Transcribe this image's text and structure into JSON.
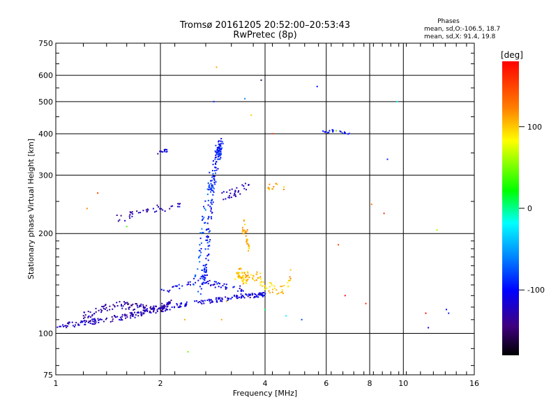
{
  "chart_data": {
    "type": "scatter",
    "title": "Tromsø 20161205 20:52:00–20:53:43",
    "subtitle": "RwPretec (8p)",
    "xlabel": "Frequency [MHz]",
    "ylabel": "Stationary phase Virtual Height [km]",
    "xscale": "log",
    "yscale": "log",
    "xlim": [
      1,
      16
    ],
    "ylim": [
      75,
      750
    ],
    "x_ticks": [
      1,
      2,
      4,
      6,
      8,
      10,
      16
    ],
    "x_tick_labels": [
      "1",
      "2",
      "4",
      "6",
      "8",
      "10",
      "16"
    ],
    "y_ticks": [
      75,
      100,
      200,
      300,
      400,
      500,
      600,
      750
    ],
    "y_tick_labels": [
      "75",
      "100",
      "200",
      "300",
      "400",
      "500",
      "600",
      "750"
    ],
    "grid": true,
    "phases_legend": {
      "title": "Phases",
      "line1": "mean, sd,O:-106.5, 18.7",
      "line2": "mean, sd,X:  91.4, 19.8"
    },
    "colorbar": {
      "label": "[deg]",
      "range": [
        -180,
        180
      ],
      "tick_values": [
        100,
        0,
        -100
      ],
      "tick_labels": [
        "100",
        "0",
        "-100"
      ]
    },
    "traces": [
      {
        "f": [
          1.0,
          1.1,
          1.25,
          1.4,
          1.55,
          1.7,
          1.85,
          2.0,
          2.15
        ],
        "h": [
          105,
          106,
          108,
          110,
          112,
          114,
          117,
          120,
          124
        ],
        "phase": -125,
        "spread": 0.02,
        "n": 160
      },
      {
        "f": [
          1.2,
          1.35,
          1.5,
          1.65,
          1.8,
          1.95,
          2.1
        ],
        "h": [
          113,
          118,
          122,
          121,
          119,
          118,
          120
        ],
        "phase": -130,
        "spread": 0.025,
        "n": 110
      },
      {
        "f": [
          2.0,
          2.3,
          2.6,
          2.9,
          3.2,
          3.5,
          3.8,
          4.0
        ],
        "h": [
          118,
          122,
          124,
          126,
          128,
          130,
          130,
          131
        ],
        "phase": -110,
        "spread": 0.015,
        "n": 130
      },
      {
        "f": [
          2.0,
          2.3,
          2.6,
          2.9,
          3.2,
          3.5
        ],
        "h": [
          135,
          138,
          145,
          140,
          137,
          136
        ],
        "phase": -108,
        "spread": 0.02,
        "n": 60
      },
      {
        "f": [
          2.6,
          2.7,
          2.75,
          2.8,
          2.85,
          2.9,
          2.95,
          3.0
        ],
        "h": [
          130,
          160,
          200,
          250,
          300,
          340,
          360,
          370
        ],
        "phase": -95,
        "spread": 0.05,
        "n": 190
      },
      {
        "f": [
          2.5,
          2.6,
          2.7,
          2.8
        ],
        "h": [
          140,
          180,
          240,
          300
        ],
        "phase": -80,
        "spread": 0.04,
        "n": 50
      },
      {
        "f": [
          1.5,
          1.7,
          1.9,
          2.1,
          2.3
        ],
        "h": [
          220,
          232,
          238,
          240,
          240
        ],
        "phase": -125,
        "spread": 0.03,
        "n": 40
      },
      {
        "f": [
          3.0,
          3.2,
          3.4,
          3.6
        ],
        "h": [
          260,
          265,
          270,
          280
        ],
        "phase": -125,
        "spread": 0.03,
        "n": 30
      },
      {
        "f": [
          1.95,
          2.05,
          2.1
        ],
        "h": [
          350,
          355,
          355
        ],
        "phase": -110,
        "spread": 0.01,
        "n": 12
      },
      {
        "f": [
          3.3,
          3.4,
          3.45,
          3.5,
          3.6,
          3.8,
          4.0,
          4.2,
          4.5,
          4.8
        ],
        "h": [
          150,
          152,
          148,
          145,
          150,
          148,
          140,
          135,
          135,
          150
        ],
        "phase": 100,
        "spread": 0.04,
        "n": 110
      },
      {
        "f": [
          3.45,
          3.5,
          3.55,
          3.6
        ],
        "h": [
          200,
          215,
          190,
          180
        ],
        "phase": 105,
        "spread": 0.03,
        "n": 30
      },
      {
        "f": [
          4.0,
          4.2,
          4.4,
          4.6
        ],
        "h": [
          275,
          278,
          280,
          275
        ],
        "phase": 110,
        "spread": 0.02,
        "n": 12
      },
      {
        "f": [
          5.8,
          6.2,
          6.6,
          7.0
        ],
        "h": [
          405,
          408,
          405,
          402
        ],
        "phase": -100,
        "spread": 0.01,
        "n": 22
      }
    ],
    "points": [
      {
        "f": 1.32,
        "h": 265,
        "phase": 150
      },
      {
        "f": 1.23,
        "h": 238,
        "phase": 120
      },
      {
        "f": 1.6,
        "h": 210,
        "phase": 40
      },
      {
        "f": 2.4,
        "h": 88,
        "phase": 50
      },
      {
        "f": 2.35,
        "h": 110,
        "phase": 110
      },
      {
        "f": 3.0,
        "h": 110,
        "phase": 110
      },
      {
        "f": 3.1,
        "h": 125,
        "phase": 115
      },
      {
        "f": 2.9,
        "h": 635,
        "phase": 110
      },
      {
        "f": 2.85,
        "h": 500,
        "phase": -90
      },
      {
        "f": 3.5,
        "h": 510,
        "phase": -60
      },
      {
        "f": 3.65,
        "h": 455,
        "phase": 100
      },
      {
        "f": 3.9,
        "h": 580,
        "phase": -150
      },
      {
        "f": 4.2,
        "h": 400,
        "phase": 150
      },
      {
        "f": 5.65,
        "h": 555,
        "phase": -100
      },
      {
        "f": 6.5,
        "h": 185,
        "phase": 150
      },
      {
        "f": 6.8,
        "h": 130,
        "phase": 175
      },
      {
        "f": 7.8,
        "h": 123,
        "phase": 160
      },
      {
        "f": 8.1,
        "h": 245,
        "phase": 130
      },
      {
        "f": 8.8,
        "h": 230,
        "phase": 160
      },
      {
        "f": 9.0,
        "h": 335,
        "phase": -90
      },
      {
        "f": 9.6,
        "h": 500,
        "phase": -20
      },
      {
        "f": 11.6,
        "h": 115,
        "phase": 175
      },
      {
        "f": 11.8,
        "h": 104,
        "phase": -110
      },
      {
        "f": 12.5,
        "h": 205,
        "phase": 60
      },
      {
        "f": 13.3,
        "h": 118,
        "phase": -100
      },
      {
        "f": 13.5,
        "h": 115,
        "phase": -95
      },
      {
        "f": 4.6,
        "h": 113,
        "phase": -20
      },
      {
        "f": 5.1,
        "h": 110,
        "phase": -80
      },
      {
        "f": 6.4,
        "h": 408,
        "phase": 70
      },
      {
        "f": 4.0,
        "h": 118,
        "phase": 10
      }
    ]
  }
}
